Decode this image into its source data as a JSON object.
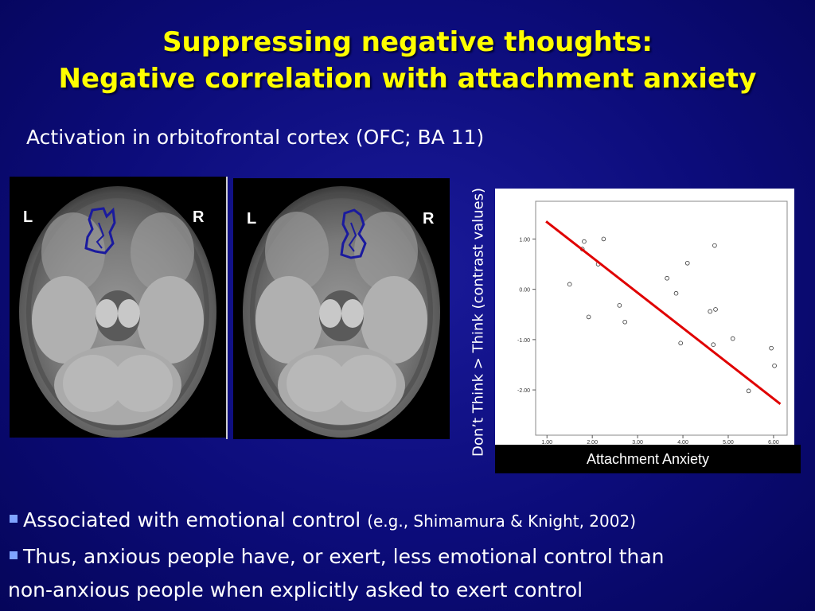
{
  "slide": {
    "title_line1": "Suppressing negative thoughts:",
    "title_line2": "Negative correlation with attachment anxiety",
    "subtitle": "Activation in orbitofrontal cortex (OFC; BA 11)"
  },
  "brain_images": [
    {
      "left_label": "L",
      "right_label": "R"
    },
    {
      "left_label": "L",
      "right_label": "R"
    }
  ],
  "bullets": {
    "b1_main": "Associated with emotional control",
    "b1_cite": "(e.g., Shimamura & Knight, 2002)",
    "b2_line1": "Thus, anxious people have, or exert, less emotional control than",
    "b2_line2": "non-anxious people when explicitly asked to exert control"
  },
  "colors": {
    "title": "#ffff00",
    "background": "#0c0c7a",
    "activation": "#1a1a9e",
    "fit_line": "#e00000"
  },
  "chart_data": {
    "type": "scatter",
    "xlabel": "Attachment Anxiety",
    "ylabel": "Don’t Think > Think (contrast values)",
    "xlim": [
      0.75,
      6.3
    ],
    "ylim": [
      -2.9,
      1.75
    ],
    "x_ticks": [
      "1.00",
      "2.00",
      "3.00",
      "4.00",
      "5.00",
      "6.00"
    ],
    "x_tick_values": [
      1,
      2,
      3,
      4,
      5,
      6
    ],
    "y_ticks": [
      "1.00",
      "0.00",
      "-1.00",
      "-2.00"
    ],
    "y_tick_values": [
      1,
      0,
      -1,
      -2
    ],
    "points": [
      {
        "x": 1.5,
        "y": 0.1
      },
      {
        "x": 1.78,
        "y": 0.8
      },
      {
        "x": 1.82,
        "y": 0.95
      },
      {
        "x": 1.92,
        "y": -0.55
      },
      {
        "x": 2.13,
        "y": 0.5
      },
      {
        "x": 2.25,
        "y": 1.0
      },
      {
        "x": 2.6,
        "y": -0.32
      },
      {
        "x": 2.72,
        "y": -0.65
      },
      {
        "x": 3.65,
        "y": 0.22
      },
      {
        "x": 3.85,
        "y": -0.08
      },
      {
        "x": 3.95,
        "y": -1.07
      },
      {
        "x": 4.1,
        "y": 0.52
      },
      {
        "x": 4.6,
        "y": -0.44
      },
      {
        "x": 4.67,
        "y": -1.1
      },
      {
        "x": 4.7,
        "y": 0.87
      },
      {
        "x": 4.72,
        "y": -0.4
      },
      {
        "x": 5.1,
        "y": -0.98
      },
      {
        "x": 5.45,
        "y": -2.02
      },
      {
        "x": 5.95,
        "y": -1.17
      },
      {
        "x": 6.02,
        "y": -1.52
      }
    ],
    "fit_line": {
      "x": [
        0.98,
        6.15
      ],
      "y": [
        1.35,
        -2.28
      ]
    },
    "grid": false
  }
}
